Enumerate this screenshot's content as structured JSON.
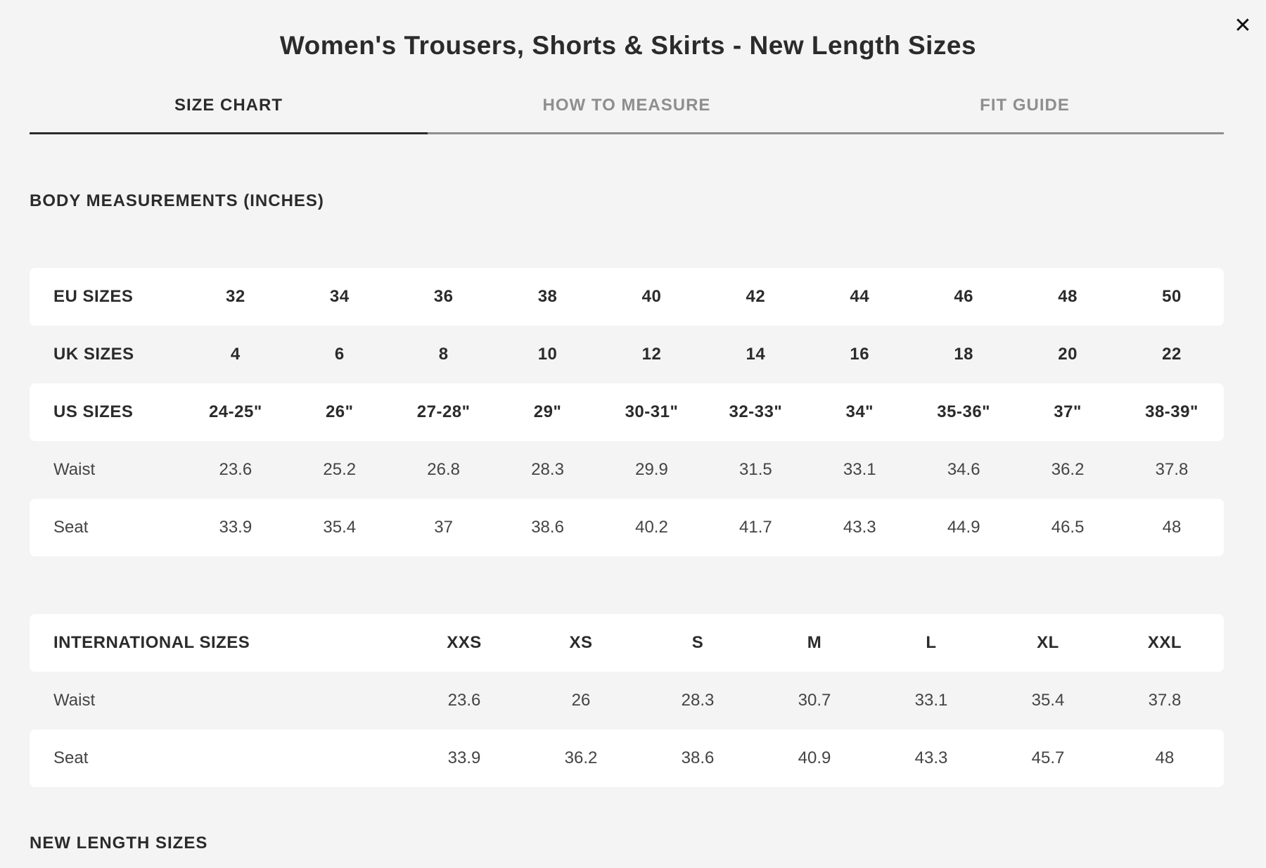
{
  "modal": {
    "title": "Women's Trousers, Shorts & Skirts - New Length Sizes",
    "close_icon": "close-icon"
  },
  "tabs": [
    {
      "label": "SIZE CHART",
      "active": true
    },
    {
      "label": "HOW TO MEASURE",
      "active": false
    },
    {
      "label": "FIT GUIDE",
      "active": false
    }
  ],
  "body_measurements": {
    "heading": "BODY MEASUREMENTS (INCHES)",
    "rows": [
      {
        "label": "EU SIZES",
        "values": [
          "32",
          "34",
          "36",
          "38",
          "40",
          "42",
          "44",
          "46",
          "48",
          "50"
        ]
      },
      {
        "label": "UK SIZES",
        "values": [
          "4",
          "6",
          "8",
          "10",
          "12",
          "14",
          "16",
          "18",
          "20",
          "22"
        ]
      },
      {
        "label": "US SIZES",
        "values": [
          "24-25\"",
          "26\"",
          "27-28\"",
          "29\"",
          "30-31\"",
          "32-33\"",
          "34\"",
          "35-36\"",
          "37\"",
          "38-39\""
        ]
      },
      {
        "label": "Waist",
        "values": [
          "23.6",
          "25.2",
          "26.8",
          "28.3",
          "29.9",
          "31.5",
          "33.1",
          "34.6",
          "36.2",
          "37.8"
        ]
      },
      {
        "label": "Seat",
        "values": [
          "33.9",
          "35.4",
          "37",
          "38.6",
          "40.2",
          "41.7",
          "43.3",
          "44.9",
          "46.5",
          "48"
        ]
      }
    ]
  },
  "international": {
    "rows": [
      {
        "label": "INTERNATIONAL SIZES",
        "values": [
          "XXS",
          "XS",
          "S",
          "M",
          "L",
          "XL",
          "XXL"
        ]
      },
      {
        "label": "Waist",
        "values": [
          "23.6",
          "26",
          "28.3",
          "30.7",
          "33.1",
          "35.4",
          "37.8"
        ]
      },
      {
        "label": "Seat",
        "values": [
          "33.9",
          "36.2",
          "38.6",
          "40.9",
          "43.3",
          "45.7",
          "48"
        ]
      }
    ]
  },
  "new_length": {
    "heading": "NEW LENGTH SIZES"
  }
}
